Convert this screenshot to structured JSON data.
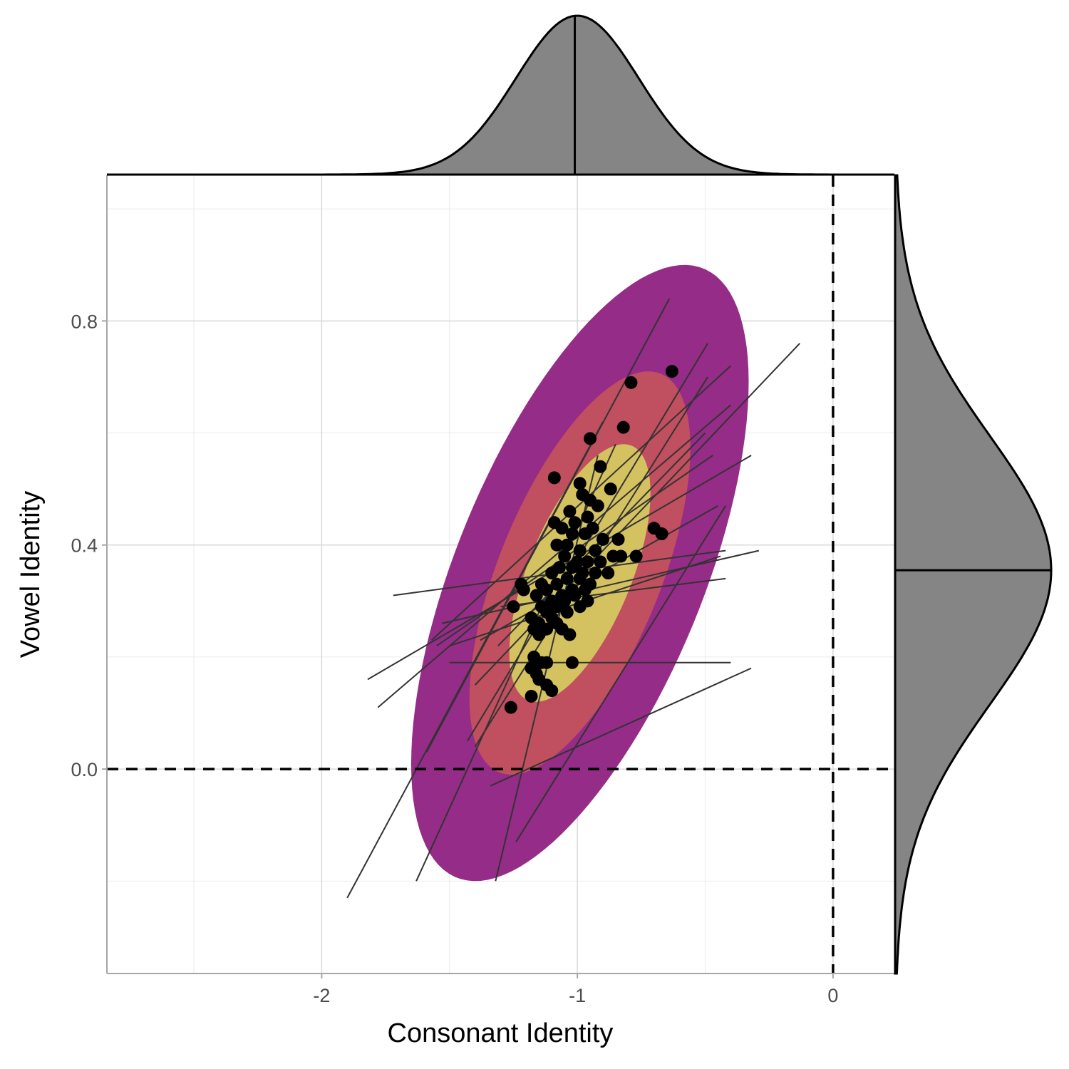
{
  "chart_data": {
    "type": "scatter",
    "title": "",
    "xlabel": "Consonant Identity",
    "ylabel": "Vowel Identity",
    "xlim": [
      -2.84,
      0.24
    ],
    "ylim": [
      -0.365,
      1.06
    ],
    "x_ticks": [
      {
        "value": -2,
        "label": "-2"
      },
      {
        "value": -1,
        "label": "-1"
      },
      {
        "value": 0,
        "label": "0"
      }
    ],
    "y_ticks": [
      {
        "value": 0.0,
        "label": "0.0"
      },
      {
        "value": 0.4,
        "label": "0.4"
      },
      {
        "value": 0.8,
        "label": "0.8"
      }
    ],
    "x_minor_grid": [
      -2.5,
      -1.5,
      -0.5
    ],
    "y_minor_grid": [
      -0.2,
      0.2,
      0.6,
      1.0
    ],
    "grid": true,
    "reference_lines": {
      "x": 0,
      "y": 0,
      "style": "dashed"
    },
    "density_contours": {
      "center": [
        -0.99,
        0.35
      ],
      "sd": [
        0.24,
        0.2
      ],
      "correlation": 0.62,
      "levels": [
        {
          "mahalanobis": 1.15,
          "color": "#D4C261"
        },
        {
          "mahalanobis": 1.8,
          "color": "#C04F5F"
        },
        {
          "mahalanobis": 2.75,
          "color": "#952C87"
        }
      ]
    },
    "points": [
      {
        "x": -0.63,
        "y": 0.71
      },
      {
        "x": -0.79,
        "y": 0.69
      },
      {
        "x": -0.82,
        "y": 0.61
      },
      {
        "x": -0.95,
        "y": 0.59
      },
      {
        "x": -0.91,
        "y": 0.54
      },
      {
        "x": -1.09,
        "y": 0.52
      },
      {
        "x": -0.99,
        "y": 0.51
      },
      {
        "x": -0.87,
        "y": 0.5
      },
      {
        "x": -0.98,
        "y": 0.49
      },
      {
        "x": -0.95,
        "y": 0.48
      },
      {
        "x": -0.92,
        "y": 0.47
      },
      {
        "x": -1.03,
        "y": 0.46
      },
      {
        "x": -0.96,
        "y": 0.45
      },
      {
        "x": -1.01,
        "y": 0.44
      },
      {
        "x": -1.09,
        "y": 0.44
      },
      {
        "x": -0.94,
        "y": 0.43
      },
      {
        "x": -0.7,
        "y": 0.43
      },
      {
        "x": -0.67,
        "y": 0.42
      },
      {
        "x": -1.06,
        "y": 0.43
      },
      {
        "x": -1.02,
        "y": 0.42
      },
      {
        "x": -0.97,
        "y": 0.42
      },
      {
        "x": -0.9,
        "y": 0.41
      },
      {
        "x": -0.84,
        "y": 0.41
      },
      {
        "x": -1.08,
        "y": 0.4
      },
      {
        "x": -1.04,
        "y": 0.4
      },
      {
        "x": -0.99,
        "y": 0.39
      },
      {
        "x": -0.93,
        "y": 0.39
      },
      {
        "x": -0.86,
        "y": 0.38
      },
      {
        "x": -0.77,
        "y": 0.38
      },
      {
        "x": -1.05,
        "y": 0.38
      },
      {
        "x": -1.0,
        "y": 0.37
      },
      {
        "x": -0.96,
        "y": 0.37
      },
      {
        "x": -0.91,
        "y": 0.37
      },
      {
        "x": -0.83,
        "y": 0.38
      },
      {
        "x": -1.07,
        "y": 0.36
      },
      {
        "x": -1.02,
        "y": 0.36
      },
      {
        "x": -0.98,
        "y": 0.35
      },
      {
        "x": -0.93,
        "y": 0.35
      },
      {
        "x": -0.88,
        "y": 0.35
      },
      {
        "x": -1.1,
        "y": 0.35
      },
      {
        "x": -1.04,
        "y": 0.34
      },
      {
        "x": -0.99,
        "y": 0.34
      },
      {
        "x": -0.95,
        "y": 0.33
      },
      {
        "x": -1.22,
        "y": 0.33
      },
      {
        "x": -1.14,
        "y": 0.33
      },
      {
        "x": -1.08,
        "y": 0.33
      },
      {
        "x": -1.02,
        "y": 0.32
      },
      {
        "x": -0.97,
        "y": 0.32
      },
      {
        "x": -1.21,
        "y": 0.32
      },
      {
        "x": -1.12,
        "y": 0.32
      },
      {
        "x": -1.06,
        "y": 0.31
      },
      {
        "x": -1.01,
        "y": 0.31
      },
      {
        "x": -1.16,
        "y": 0.31
      },
      {
        "x": -1.1,
        "y": 0.3
      },
      {
        "x": -1.05,
        "y": 0.3
      },
      {
        "x": -0.96,
        "y": 0.3
      },
      {
        "x": -1.14,
        "y": 0.29
      },
      {
        "x": -1.08,
        "y": 0.29
      },
      {
        "x": -1.25,
        "y": 0.29
      },
      {
        "x": -0.99,
        "y": 0.29
      },
      {
        "x": -1.12,
        "y": 0.28
      },
      {
        "x": -1.04,
        "y": 0.28
      },
      {
        "x": -1.18,
        "y": 0.27
      },
      {
        "x": -1.1,
        "y": 0.27
      },
      {
        "x": -1.15,
        "y": 0.26
      },
      {
        "x": -1.08,
        "y": 0.26
      },
      {
        "x": -1.17,
        "y": 0.25
      },
      {
        "x": -1.12,
        "y": 0.25
      },
      {
        "x": -1.06,
        "y": 0.25
      },
      {
        "x": -1.15,
        "y": 0.24
      },
      {
        "x": -1.03,
        "y": 0.24
      },
      {
        "x": -1.17,
        "y": 0.2
      },
      {
        "x": -1.14,
        "y": 0.19
      },
      {
        "x": -1.12,
        "y": 0.19
      },
      {
        "x": -1.02,
        "y": 0.19
      },
      {
        "x": -1.18,
        "y": 0.18
      },
      {
        "x": -1.16,
        "y": 0.17
      },
      {
        "x": -1.15,
        "y": 0.16
      },
      {
        "x": -1.12,
        "y": 0.15
      },
      {
        "x": -1.1,
        "y": 0.14
      },
      {
        "x": -1.18,
        "y": 0.13
      },
      {
        "x": -1.26,
        "y": 0.11
      }
    ],
    "lines": [
      {
        "x1": -1.59,
        "y1": 0.03,
        "x2": -0.64,
        "y2": 0.84
      },
      {
        "x1": -1.43,
        "y1": 0.05,
        "x2": -0.49,
        "y2": 0.76
      },
      {
        "x1": -1.57,
        "y1": 0.23,
        "x2": -0.4,
        "y2": 0.72
      },
      {
        "x1": -1.4,
        "y1": 0.04,
        "x2": -0.49,
        "y2": 0.7
      },
      {
        "x1": -1.78,
        "y1": 0.11,
        "x2": -0.4,
        "y2": 0.65
      },
      {
        "x1": -1.4,
        "y1": 0.15,
        "x2": -0.13,
        "y2": 0.76
      },
      {
        "x1": -1.55,
        "y1": 0.22,
        "x2": -0.47,
        "y2": 0.56
      },
      {
        "x1": -1.82,
        "y1": 0.16,
        "x2": -0.32,
        "y2": 0.56
      },
      {
        "x1": -1.31,
        "y1": 0.22,
        "x2": -0.5,
        "y2": 0.6
      },
      {
        "x1": -1.38,
        "y1": 0.23,
        "x2": -0.45,
        "y2": 0.47
      },
      {
        "x1": -1.72,
        "y1": 0.31,
        "x2": -0.42,
        "y2": 0.39
      },
      {
        "x1": -1.53,
        "y1": 0.26,
        "x2": -0.29,
        "y2": 0.39
      },
      {
        "x1": -1.3,
        "y1": 0.29,
        "x2": -0.42,
        "y2": 0.34
      },
      {
        "x1": -1.5,
        "y1": 0.22,
        "x2": -0.44,
        "y2": 0.38
      },
      {
        "x1": -1.5,
        "y1": 0.19,
        "x2": -0.4,
        "y2": 0.19
      },
      {
        "x1": -1.9,
        "y1": -0.23,
        "x2": -0.9,
        "y2": 0.62
      },
      {
        "x1": -1.63,
        "y1": -0.2,
        "x2": -0.85,
        "y2": 0.58
      },
      {
        "x1": -1.32,
        "y1": -0.2,
        "x2": -0.92,
        "y2": 0.56
      },
      {
        "x1": -1.24,
        "y1": -0.13,
        "x2": -0.42,
        "y2": 0.47
      },
      {
        "x1": -1.34,
        "y1": -0.03,
        "x2": -0.32,
        "y2": 0.18
      }
    ],
    "marginals": {
      "x": {
        "mean": -1.0,
        "sd": 0.24,
        "median": -1.01
      },
      "y": {
        "mean": 0.355,
        "sd": 0.24,
        "median": 0.355
      }
    }
  }
}
